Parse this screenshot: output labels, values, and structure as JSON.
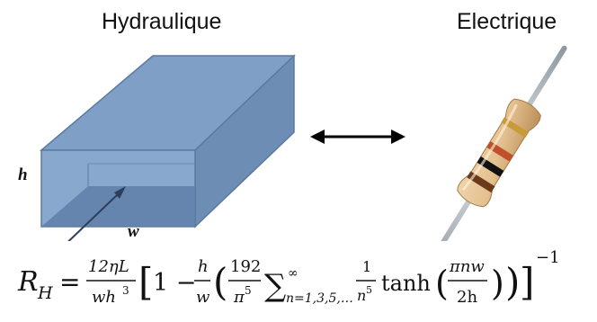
{
  "headings": {
    "hydraulic": "Hydraulique",
    "electric": "Electrique"
  },
  "channel": {
    "height_label": "h",
    "width_label": "w",
    "fill_color": "#7f9fc6",
    "edge_color": "#5a7aa3"
  },
  "equivalence_arrow": "double-headed-arrow",
  "resistor": {
    "body_color": "#e3c08f",
    "bands": [
      "#6b3a1a",
      "#111111",
      "#c0502a",
      "#c79a3a"
    ]
  },
  "formula": {
    "lhs": "R",
    "lhs_sub": "H",
    "equals": "=",
    "coef_num": "12ηL",
    "coef_den": "wh",
    "coef_den_exp": "3",
    "one_minus": "1 −",
    "h_over_w_num": "h",
    "h_over_w_den": "w",
    "c192_num": "192",
    "c192_den": "π",
    "c192_den_exp": "5",
    "sum_symbol": "∑",
    "sum_upper": "∞",
    "sum_lower": "n=1,3,5,…",
    "inv_num": "1",
    "inv_den": "n",
    "inv_den_exp": "5",
    "tanh": "tanh",
    "arg_num": "πnw",
    "arg_den": "2h",
    "outer_exp": "−1"
  }
}
